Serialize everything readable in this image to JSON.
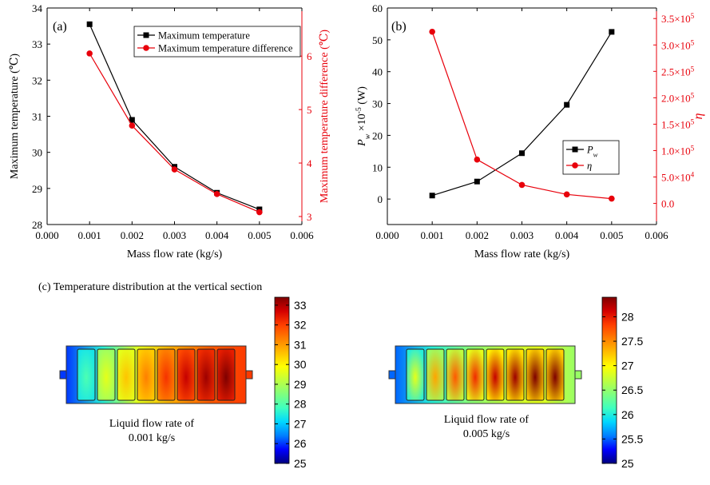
{
  "chart_data": [
    {
      "type": "line",
      "panel_label": "(a)",
      "x": [
        0.001,
        0.002,
        0.003,
        0.004,
        0.005
      ],
      "xlabel": "Mass flow rate (kg/s)",
      "xlim": [
        0.0,
        0.006
      ],
      "xticks": [
        "0.000",
        "0.001",
        "0.002",
        "0.003",
        "0.004",
        "0.005",
        "0.006"
      ],
      "ylabel_left": "Maximum temperature (℃)",
      "ylim_left": [
        28,
        34
      ],
      "yticks_left": [
        "28",
        "29",
        "30",
        "31",
        "32",
        "33",
        "34"
      ],
      "ylabel_right": "Maximum temperature difference (℃)",
      "ylim_right": [
        2.85,
        6.9
      ],
      "yticks_right": [
        "3",
        "4",
        "5",
        "6"
      ],
      "series": [
        {
          "name": "Maximum temperature",
          "axis": "left",
          "color": "#000000",
          "marker": "square",
          "values": [
            33.55,
            30.9,
            29.6,
            28.88,
            28.42
          ]
        },
        {
          "name": "Maximum temperature difference",
          "axis": "right",
          "color": "#e8000b",
          "marker": "circle",
          "values": [
            6.05,
            4.7,
            3.88,
            3.42,
            3.08
          ]
        }
      ],
      "legend_position": "top-right"
    },
    {
      "type": "line",
      "panel_label": "(b)",
      "x": [
        0.001,
        0.002,
        0.003,
        0.004,
        0.005
      ],
      "xlabel": "Mass flow rate (kg/s)",
      "xlim": [
        0.0,
        0.006
      ],
      "xticks": [
        "0.000",
        "0.001",
        "0.002",
        "0.003",
        "0.004",
        "0.005",
        "0.006"
      ],
      "ylabel_left": "P_w ×10^-5 (W)",
      "ylim_left": [
        -8,
        60
      ],
      "yticks_left": [
        "0",
        "10",
        "20",
        "30",
        "40",
        "50",
        "60"
      ],
      "ylabel_right": "η",
      "ylim_right": [
        -40000,
        370000
      ],
      "yticks_right": [
        "0.0",
        "5.0×10^4",
        "1.0×10^5",
        "1.5×10^5",
        "2.0×10^5",
        "2.5×10^5",
        "3.0×10^5",
        "3.5×10^5"
      ],
      "series": [
        {
          "name": "P_w",
          "axis": "left",
          "color": "#000000",
          "marker": "square",
          "values": [
            1.1,
            5.5,
            14.4,
            29.6,
            52.5
          ]
        },
        {
          "name": "η",
          "axis": "right",
          "color": "#e8000b",
          "marker": "circle",
          "values": [
            325000,
            83000,
            35000,
            17000,
            9000
          ]
        }
      ],
      "legend_position": "middle-right"
    }
  ],
  "section_c": {
    "title": "(c) Temperature distribution at the vertical section",
    "left": {
      "caption_line1": "Liquid flow rate of",
      "caption_line2": "0.001 kg/s",
      "colorbar_ticks": [
        "33",
        "32",
        "31",
        "30",
        "29",
        "28",
        "27",
        "26",
        "25"
      ],
      "colorbar_range": [
        25,
        33.4
      ]
    },
    "right": {
      "caption_line1": "Liquid flow rate of",
      "caption_line2": "0.005 kg/s",
      "colorbar_ticks": [
        "28",
        "27.5",
        "27",
        "26.5",
        "26",
        "25.5",
        "25"
      ],
      "colorbar_range": [
        25,
        28.4
      ]
    }
  }
}
